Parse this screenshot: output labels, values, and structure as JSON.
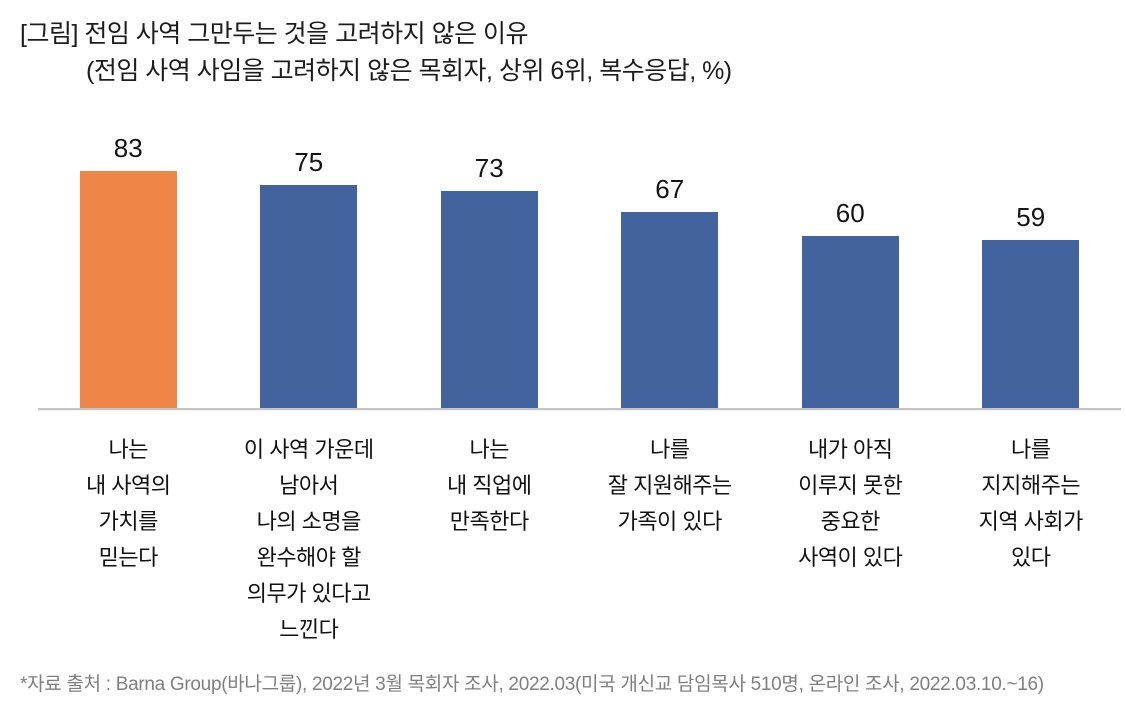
{
  "chart_data": {
    "type": "bar",
    "title": "[그림] 전임 사역 그만두는 것을 고려하지 않은 이유",
    "subtitle": "(전임 사역 사임을 고려하지 않은 목회자, 상위 6위, 복수응답, %)",
    "unit": "%",
    "categories": [
      "나는\n내 사역의\n가치를\n믿는다",
      "이 사역 가운데\n남아서\n나의 소명을\n완수해야 할\n의무가 있다고\n느낀다",
      "나는\n내 직업에\n만족한다",
      "나를\n잘 지원해주는\n가족이 있다",
      "내가 아직\n이루지 못한\n중요한\n사역이 있다",
      "나를\n지지해주는\n지역 사회가\n있다"
    ],
    "values": [
      83,
      75,
      73,
      67,
      60,
      59
    ],
    "bar_colors": [
      "#EF8546",
      "#42639E",
      "#42639E",
      "#42639E",
      "#42639E",
      "#42639E"
    ],
    "highlight_color": "#EF8546",
    "base_color": "#42639E",
    "axis_line_color": "#c4c4c4",
    "ylim": [
      10,
      90
    ],
    "grid": false,
    "legend": false,
    "value_labels": true,
    "source": "*자료 출처 : Barna Group(바나그룹), 2022년 3월 목회자 조사, 2022.03(미국 개신교 담임목사 510명, 온라인 조사, 2022.03.10.~16)"
  }
}
